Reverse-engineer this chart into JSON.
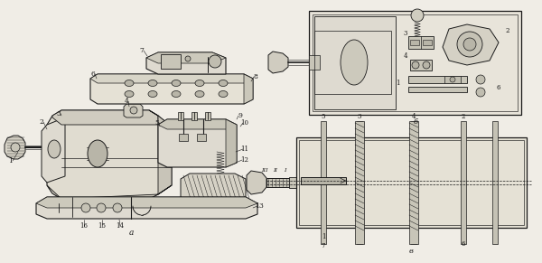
{
  "bg_color": "#f0ede6",
  "line_color": "#1a1a1a",
  "fill_light": "#e8e4da",
  "fill_mid": "#d5d1c5",
  "fill_dark": "#c0bdb0",
  "title_a": "a",
  "title_b": "б",
  "title_v": "в",
  "figsize": [
    6.0,
    2.91
  ],
  "dpi": 100
}
